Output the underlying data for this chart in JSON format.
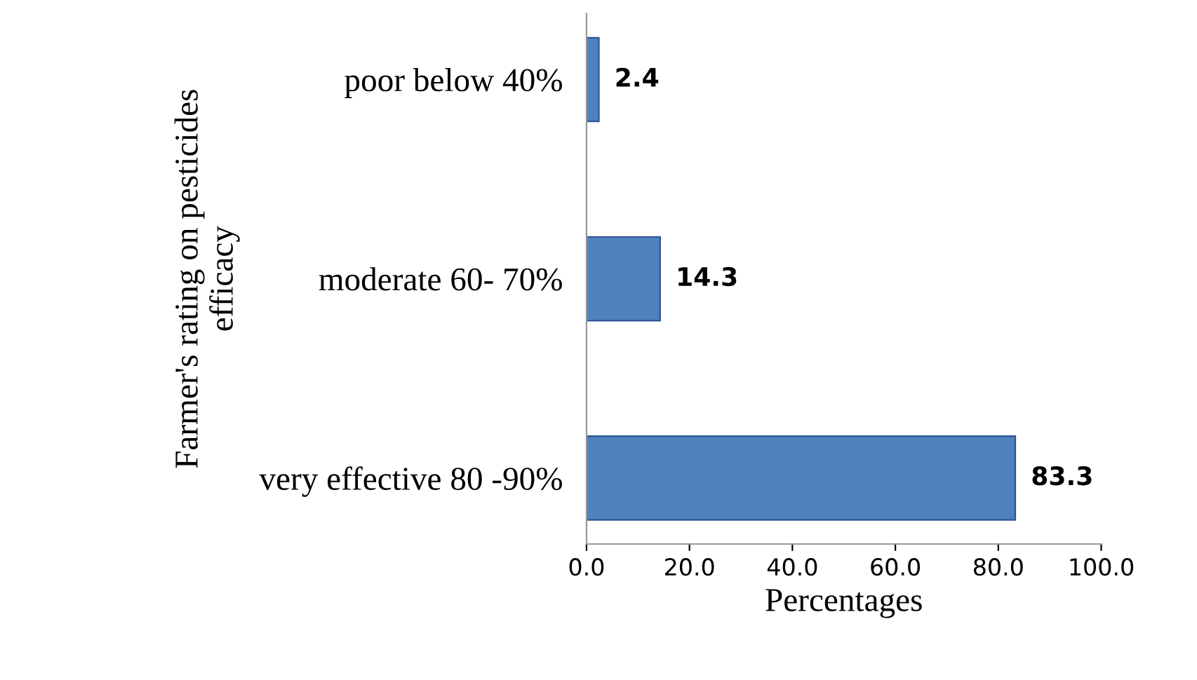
{
  "chart_data": {
    "type": "bar",
    "orientation": "horizontal",
    "xlabel": "Percentages",
    "ylabel": "Farmer's rating on pesticides\nefficacy",
    "categories": [
      "poor below 40%",
      "moderate 60- 70%",
      "very effective 80 -90%"
    ],
    "values": [
      2.4,
      14.3,
      83.3
    ],
    "color": "#4f81bd",
    "xlim": [
      0,
      100
    ],
    "xticks": [
      {
        "value": 0,
        "label": "0.0"
      },
      {
        "value": 20,
        "label": "20.0"
      },
      {
        "value": 40,
        "label": "40.0"
      },
      {
        "value": 60,
        "label": "60.0"
      },
      {
        "value": 80,
        "label": "80.0"
      },
      {
        "value": 100,
        "label": "100.0"
      }
    ],
    "data_labels": true,
    "grid": false
  }
}
